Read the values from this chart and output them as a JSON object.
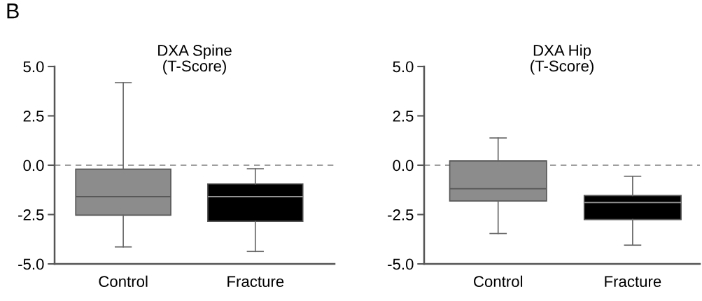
{
  "chart_data": [
    {
      "type": "box",
      "title": "DXA Spine\n(T-Score)",
      "annotations": [
        "B"
      ],
      "categories": [
        "Control",
        "Fracture"
      ],
      "colors": [
        "#8c8c8c",
        "#000000"
      ],
      "boxes": [
        {
          "low": -4.14,
          "q1": -2.53,
          "median": -1.59,
          "q3": -0.2,
          "high": 4.18
        },
        {
          "low": -4.37,
          "q1": -2.84,
          "median": -1.59,
          "q3": -0.95,
          "high": -0.18
        }
      ],
      "ylim": [
        -5.0,
        5.0
      ],
      "yticks": [
        {
          "value": -5,
          "label": "-5.0"
        },
        {
          "value": -2.5,
          "label": "-2.5"
        },
        {
          "value": 0,
          "label": "0.0"
        },
        {
          "value": 2.5,
          "label": "2.5"
        },
        {
          "value": 5,
          "label": "5.0"
        }
      ],
      "ref_lines": [
        {
          "axis": "y",
          "value": 0,
          "color": "#808080",
          "line_style": "dashed"
        }
      ],
      "grid": false,
      "legend": false
    },
    {
      "type": "box",
      "title": "DXA Hip\n(T-Score)",
      "categories": [
        "Control",
        "Fracture"
      ],
      "colors": [
        "#8c8c8c",
        "#000000"
      ],
      "boxes": [
        {
          "low": -3.46,
          "q1": -1.81,
          "median": -1.19,
          "q3": 0.22,
          "high": 1.38
        },
        {
          "low": -4.05,
          "q1": -2.75,
          "median": -1.89,
          "q3": -1.54,
          "high": -0.56
        }
      ],
      "ylim": [
        -5.0,
        5.0
      ],
      "yticks": [
        {
          "value": -5,
          "label": "-5.0"
        },
        {
          "value": -2.5,
          "label": "-2.5"
        },
        {
          "value": 0,
          "label": "0.0"
        },
        {
          "value": 2.5,
          "label": "2.5"
        },
        {
          "value": 5,
          "label": "5.0"
        }
      ],
      "ref_lines": [
        {
          "axis": "y",
          "value": 0,
          "color": "#808080",
          "line_style": "dashed"
        }
      ],
      "grid": false,
      "legend": false
    }
  ]
}
